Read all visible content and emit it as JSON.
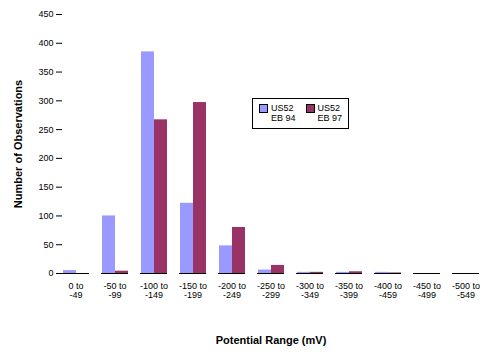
{
  "chart_data": {
    "type": "bar",
    "x_label": "Potential Range (mV)",
    "y_label": "Number of Observations",
    "categories": [
      "0 to -49",
      "-50 to -99",
      "-100 to -149",
      "-150 to -199",
      "-200 to -249",
      "-250 to -299",
      "-300 to -349",
      "-350 to -399",
      "-400 to -459",
      "-450 to -499",
      "-500 to -549"
    ],
    "series": [
      {
        "name": "US52 EB 94",
        "color": "#9999ff",
        "values": [
          5,
          100,
          385,
          122,
          48,
          6,
          2,
          2,
          2,
          0,
          0
        ]
      },
      {
        "name": "US52 EB 97",
        "color": "#993366",
        "values": [
          0,
          4,
          267,
          297,
          80,
          14,
          2,
          3,
          1,
          0,
          0
        ]
      }
    ],
    "ylim": [
      0,
      450
    ],
    "yticks": [
      0,
      50,
      100,
      150,
      200,
      250,
      300,
      350,
      400,
      450
    ],
    "grid": false,
    "legend": "center"
  }
}
